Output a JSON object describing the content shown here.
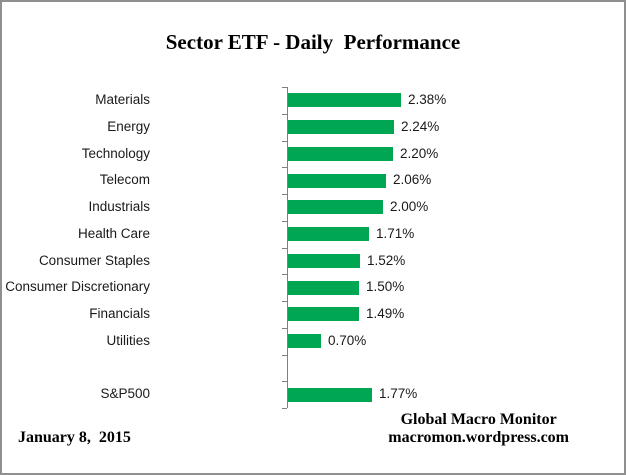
{
  "chart_data": {
    "type": "bar",
    "orientation": "horizontal",
    "title": "Sector ETF - Daily  Performance",
    "categories": [
      "Materials",
      "Energy",
      "Technology",
      "Telecom",
      "Industrials",
      "Health Care",
      "Consumer Staples",
      "Consumer Discretionary",
      "Financials",
      "Utilities",
      "S&P500"
    ],
    "values": [
      2.38,
      2.24,
      2.2,
      2.06,
      2.0,
      1.71,
      1.52,
      1.5,
      1.49,
      0.7,
      1.77
    ],
    "value_labels": [
      "2.38%",
      "2.24%",
      "2.20%",
      "2.06%",
      "2.00%",
      "1.71%",
      "1.52%",
      "1.50%",
      "1.49%",
      "0.70%",
      "1.77%"
    ],
    "xlim": [
      0,
      2.5
    ],
    "bar_color": "#00A651",
    "axis_color": "#808080",
    "gap_row_before": "S&P500",
    "grid": false,
    "legend": false
  },
  "footer": {
    "date": "January 8,  2015",
    "credit_line1": "Global Macro Monitor",
    "credit_line2": "macromon.wordpress.com"
  }
}
